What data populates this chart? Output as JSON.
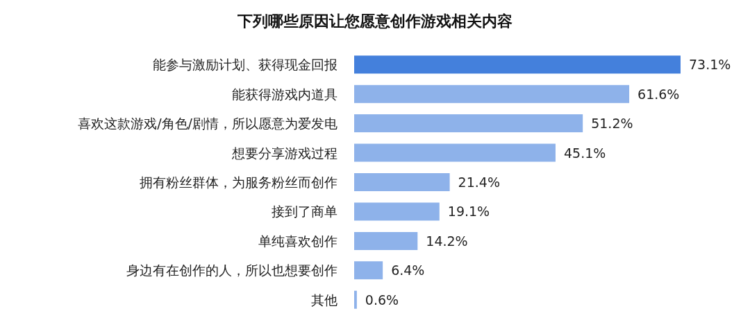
{
  "chart_data": {
    "type": "bar",
    "orientation": "horizontal",
    "title": "下列哪些原因让您愿意创作游戏相关内容",
    "categories": [
      "能参与激励计划、获得现金回报",
      "能获得游戏内道具",
      "喜欢这款游戏/角色/剧情，所以愿意为爱发电",
      "想要分享游戏过程",
      "拥有粉丝群体，为服务粉丝而创作",
      "接到了商单",
      "单纯喜欢创作",
      "身边有在创作的人，所以也想要创作",
      "其他"
    ],
    "values": [
      73.1,
      61.6,
      51.2,
      45.1,
      21.4,
      19.1,
      14.2,
      6.4,
      0.6
    ],
    "value_labels": [
      "73.1%",
      "61.6%",
      "51.2%",
      "45.1%",
      "21.4%",
      "19.1%",
      "14.2%",
      "6.4%",
      "0.6%"
    ],
    "colors": [
      "#4480dc",
      "#8eb2ea",
      "#8eb2ea",
      "#8eb2ea",
      "#8eb2ea",
      "#8eb2ea",
      "#8eb2ea",
      "#8eb2ea",
      "#8eb2ea"
    ],
    "tick_labels": "y"
  }
}
